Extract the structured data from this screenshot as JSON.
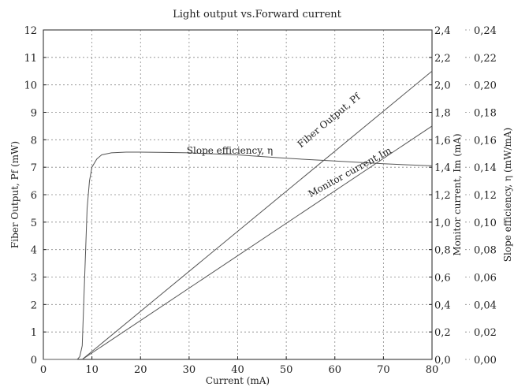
{
  "chart_data": {
    "type": "line",
    "title": "Light output vs.Forward current",
    "xlabel": "Current  (mA)",
    "ylabel_left": "Fiber Output,  Pf (mW)",
    "ylabel_right1": "Monitor current,  Im (mA)",
    "ylabel_right2": "Slope efficiency,  η  (mW/mA)",
    "xlim": [
      0,
      80
    ],
    "ylim_left": [
      0,
      12
    ],
    "ylim_right1": [
      0,
      2.4
    ],
    "ylim_right2": [
      0,
      0.24
    ],
    "grid": true,
    "x_ticks": [
      "0",
      "10",
      "20",
      "30",
      "40",
      "50",
      "60",
      "70",
      "80"
    ],
    "y_left_ticks": [
      "0",
      "1",
      "2",
      "3",
      "4",
      "5",
      "6",
      "7",
      "8",
      "9",
      "10",
      "11",
      "12"
    ],
    "y_right1_ticks": [
      "0,0",
      "0,2",
      "0,4",
      "0,6",
      "0,8",
      "1,0",
      "1,2",
      "1,4",
      "1,6",
      "1,8",
      "2,0",
      "2,2",
      "2,4"
    ],
    "y_right2_ticks": [
      "0,00",
      "0,02",
      "0,04",
      "0,06",
      "0,08",
      "0,10",
      "0,12",
      "0,14",
      "0,16",
      "0,18",
      "0,20",
      "0,22",
      "0,24"
    ],
    "series": [
      {
        "name": "Fiber Output, Pf",
        "axis": "left",
        "x": [
          8,
          80
        ],
        "y": [
          0,
          10.5
        ]
      },
      {
        "name": "Monitor current,Im",
        "axis": "right1",
        "x": [
          8,
          80
        ],
        "y": [
          0,
          1.7
        ]
      },
      {
        "name": "Slope efficiency, η",
        "axis": "right2",
        "x": [
          0,
          7.0,
          7.5,
          8.0,
          8.5,
          9.0,
          9.5,
          10.0,
          11.0,
          12.0,
          14.0,
          17.0,
          20.0,
          25.0,
          30.0,
          40.0,
          50.0,
          60.0,
          70.0,
          80.0
        ],
        "y": [
          0,
          0,
          0.002,
          0.01,
          0.06,
          0.11,
          0.13,
          0.14,
          0.146,
          0.149,
          0.1505,
          0.151,
          0.151,
          0.1508,
          0.1505,
          0.149,
          0.1465,
          0.1445,
          0.1425,
          0.141
        ]
      }
    ],
    "annotations": [
      {
        "text": "Slope efficiency, η",
        "series": "Slope efficiency, η",
        "x": 29.5,
        "y_left": 7.5,
        "angle": 0
      },
      {
        "text": "Fiber Output, Pf",
        "series": "Fiber Output, Pf",
        "x": 53,
        "y_left": 7.7,
        "angle": -40
      },
      {
        "text": "Monitor current,Im",
        "series": "Monitor current,Im",
        "x": 55,
        "y_left": 5.9,
        "angle": -29
      }
    ]
  }
}
